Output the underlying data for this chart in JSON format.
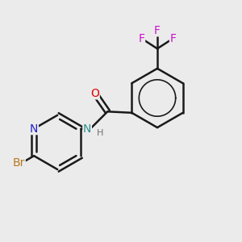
{
  "background_color": "#ebebeb",
  "bond_color": "#1a1a1a",
  "bond_width": 1.8,
  "atom_colors": {
    "O": "#e00000",
    "N_amide": "#2f8f8f",
    "N_pyridine": "#2020cc",
    "Br": "#b87820",
    "F": "#cc10cc",
    "H": "#707070"
  },
  "font_size": 10,
  "font_size_h": 8,
  "scale": 1.0
}
